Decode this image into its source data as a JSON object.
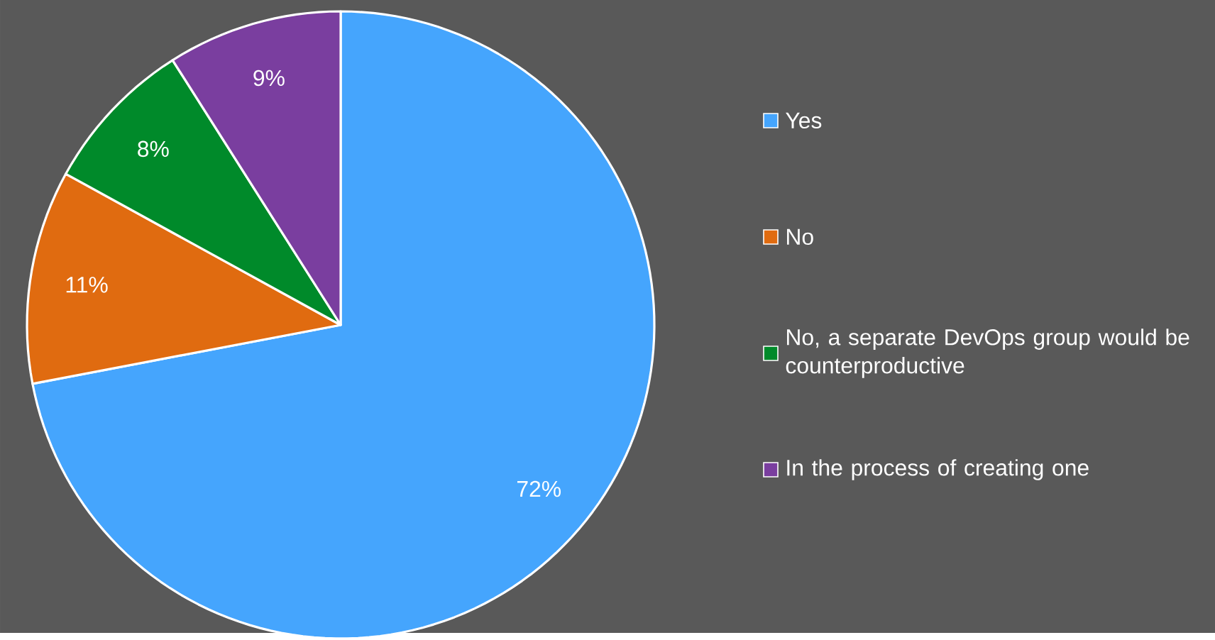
{
  "chart_data": {
    "type": "pie",
    "categories": [
      "Yes",
      "No",
      "No, a separate DevOps group would be counterproductive",
      "In the process of creating one"
    ],
    "values": [
      72,
      11,
      8,
      9
    ],
    "colors": [
      "#45a5fd",
      "#e06b10",
      "#008a2a",
      "#7a3e9f"
    ],
    "value_labels": [
      "72%",
      "11%",
      "8%",
      "9%"
    ],
    "legend": "right"
  }
}
